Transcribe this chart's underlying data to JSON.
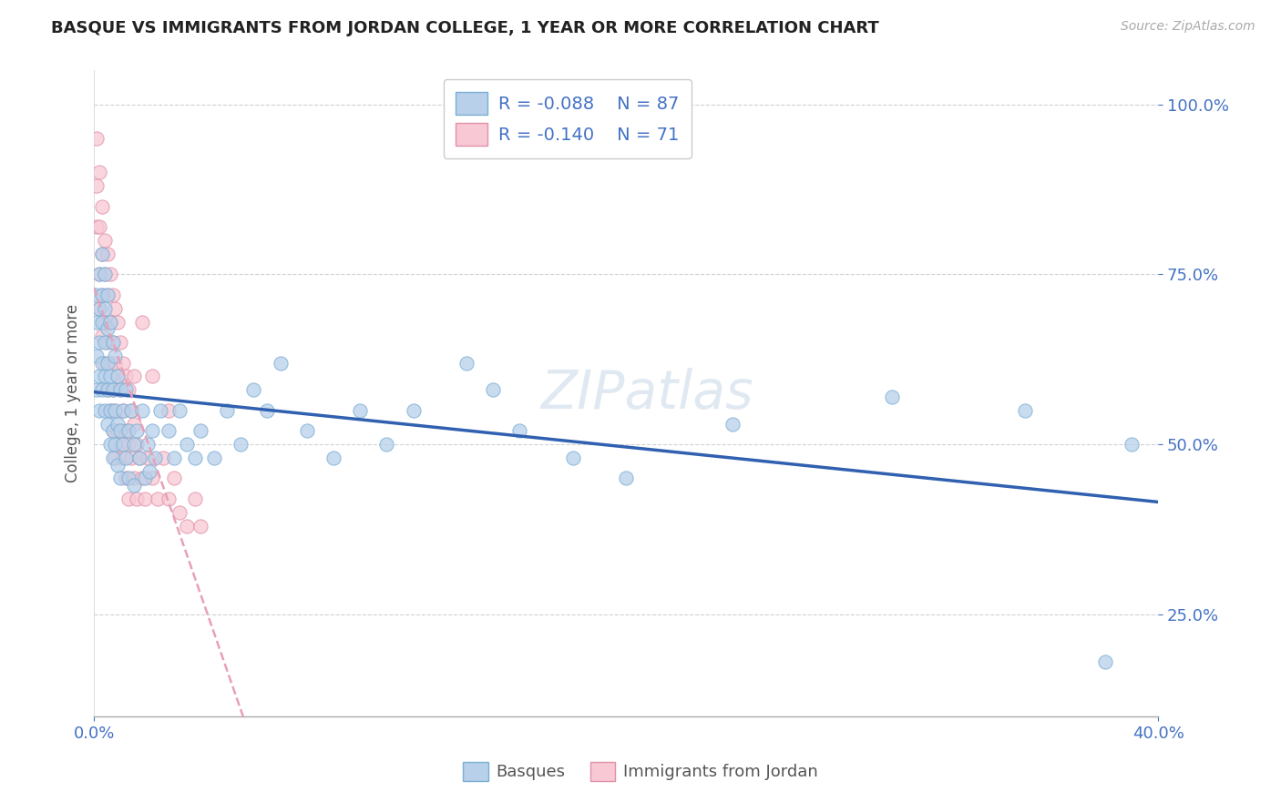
{
  "title": "BASQUE VS IMMIGRANTS FROM JORDAN COLLEGE, 1 YEAR OR MORE CORRELATION CHART",
  "source": "Source: ZipAtlas.com",
  "ylabel": "College, 1 year or more",
  "y_ticks": [
    0.25,
    0.5,
    0.75,
    1.0
  ],
  "xmin": 0.0,
  "xmax": 0.4,
  "ymin": 0.1,
  "ymax": 1.05,
  "series1_label": "Basques",
  "series1_R": -0.088,
  "series1_N": 87,
  "series1_color": "#b8d0ea",
  "series1_edge_color": "#7aaed4",
  "series1_line_color": "#3060b0",
  "series2_label": "Immigrants from Jordan",
  "series2_R": -0.14,
  "series2_N": 71,
  "series2_color": "#f8c8d4",
  "series2_edge_color": "#e090a8",
  "series2_line_color": "#e8a0b8",
  "watermark": "ZIPatlas",
  "background_color": "#ffffff",
  "grid_color": "#cccccc",
  "title_color": "#222222",
  "axis_label_color": "#4472c4",
  "blue_scatter": [
    [
      0.001,
      0.63
    ],
    [
      0.001,
      0.58
    ],
    [
      0.001,
      0.72
    ],
    [
      0.001,
      0.68
    ],
    [
      0.002,
      0.75
    ],
    [
      0.002,
      0.65
    ],
    [
      0.002,
      0.7
    ],
    [
      0.002,
      0.6
    ],
    [
      0.002,
      0.55
    ],
    [
      0.003,
      0.78
    ],
    [
      0.003,
      0.68
    ],
    [
      0.003,
      0.72
    ],
    [
      0.003,
      0.62
    ],
    [
      0.003,
      0.58
    ],
    [
      0.004,
      0.75
    ],
    [
      0.004,
      0.65
    ],
    [
      0.004,
      0.7
    ],
    [
      0.004,
      0.55
    ],
    [
      0.004,
      0.6
    ],
    [
      0.005,
      0.72
    ],
    [
      0.005,
      0.62
    ],
    [
      0.005,
      0.67
    ],
    [
      0.005,
      0.58
    ],
    [
      0.005,
      0.53
    ],
    [
      0.006,
      0.68
    ],
    [
      0.006,
      0.6
    ],
    [
      0.006,
      0.55
    ],
    [
      0.006,
      0.5
    ],
    [
      0.007,
      0.65
    ],
    [
      0.007,
      0.58
    ],
    [
      0.007,
      0.52
    ],
    [
      0.007,
      0.48
    ],
    [
      0.008,
      0.63
    ],
    [
      0.008,
      0.55
    ],
    [
      0.008,
      0.5
    ],
    [
      0.009,
      0.6
    ],
    [
      0.009,
      0.53
    ],
    [
      0.009,
      0.47
    ],
    [
      0.01,
      0.58
    ],
    [
      0.01,
      0.52
    ],
    [
      0.01,
      0.45
    ],
    [
      0.011,
      0.55
    ],
    [
      0.011,
      0.5
    ],
    [
      0.012,
      0.58
    ],
    [
      0.012,
      0.48
    ],
    [
      0.013,
      0.52
    ],
    [
      0.013,
      0.45
    ],
    [
      0.014,
      0.55
    ],
    [
      0.015,
      0.5
    ],
    [
      0.015,
      0.44
    ],
    [
      0.016,
      0.52
    ],
    [
      0.017,
      0.48
    ],
    [
      0.018,
      0.55
    ],
    [
      0.019,
      0.45
    ],
    [
      0.02,
      0.5
    ],
    [
      0.021,
      0.46
    ],
    [
      0.022,
      0.52
    ],
    [
      0.023,
      0.48
    ],
    [
      0.025,
      0.55
    ],
    [
      0.028,
      0.52
    ],
    [
      0.03,
      0.48
    ],
    [
      0.032,
      0.55
    ],
    [
      0.035,
      0.5
    ],
    [
      0.038,
      0.48
    ],
    [
      0.04,
      0.52
    ],
    [
      0.045,
      0.48
    ],
    [
      0.05,
      0.55
    ],
    [
      0.055,
      0.5
    ],
    [
      0.06,
      0.58
    ],
    [
      0.065,
      0.55
    ],
    [
      0.07,
      0.62
    ],
    [
      0.08,
      0.52
    ],
    [
      0.09,
      0.48
    ],
    [
      0.1,
      0.55
    ],
    [
      0.11,
      0.5
    ],
    [
      0.12,
      0.55
    ],
    [
      0.14,
      0.62
    ],
    [
      0.15,
      0.58
    ],
    [
      0.16,
      0.52
    ],
    [
      0.18,
      0.48
    ],
    [
      0.2,
      0.45
    ],
    [
      0.24,
      0.53
    ],
    [
      0.3,
      0.57
    ],
    [
      0.38,
      0.18
    ],
    [
      0.35,
      0.55
    ],
    [
      0.39,
      0.5
    ]
  ],
  "pink_scatter": [
    [
      0.001,
      0.95
    ],
    [
      0.001,
      0.88
    ],
    [
      0.001,
      0.82
    ],
    [
      0.002,
      0.9
    ],
    [
      0.002,
      0.82
    ],
    [
      0.002,
      0.75
    ],
    [
      0.002,
      0.7
    ],
    [
      0.003,
      0.85
    ],
    [
      0.003,
      0.78
    ],
    [
      0.003,
      0.72
    ],
    [
      0.003,
      0.66
    ],
    [
      0.004,
      0.8
    ],
    [
      0.004,
      0.75
    ],
    [
      0.004,
      0.68
    ],
    [
      0.004,
      0.62
    ],
    [
      0.005,
      0.78
    ],
    [
      0.005,
      0.72
    ],
    [
      0.005,
      0.65
    ],
    [
      0.005,
      0.58
    ],
    [
      0.006,
      0.75
    ],
    [
      0.006,
      0.68
    ],
    [
      0.006,
      0.62
    ],
    [
      0.006,
      0.55
    ],
    [
      0.007,
      0.72
    ],
    [
      0.007,
      0.65
    ],
    [
      0.007,
      0.58
    ],
    [
      0.007,
      0.52
    ],
    [
      0.008,
      0.7
    ],
    [
      0.008,
      0.62
    ],
    [
      0.008,
      0.55
    ],
    [
      0.008,
      0.48
    ],
    [
      0.009,
      0.68
    ],
    [
      0.009,
      0.6
    ],
    [
      0.009,
      0.52
    ],
    [
      0.01,
      0.65
    ],
    [
      0.01,
      0.58
    ],
    [
      0.01,
      0.5
    ],
    [
      0.011,
      0.62
    ],
    [
      0.011,
      0.55
    ],
    [
      0.011,
      0.48
    ],
    [
      0.012,
      0.6
    ],
    [
      0.012,
      0.52
    ],
    [
      0.012,
      0.45
    ],
    [
      0.013,
      0.58
    ],
    [
      0.013,
      0.5
    ],
    [
      0.013,
      0.42
    ],
    [
      0.014,
      0.55
    ],
    [
      0.014,
      0.48
    ],
    [
      0.015,
      0.53
    ],
    [
      0.015,
      0.45
    ],
    [
      0.016,
      0.5
    ],
    [
      0.016,
      0.42
    ],
    [
      0.017,
      0.48
    ],
    [
      0.018,
      0.45
    ],
    [
      0.019,
      0.42
    ],
    [
      0.02,
      0.48
    ],
    [
      0.022,
      0.45
    ],
    [
      0.024,
      0.42
    ],
    [
      0.026,
      0.48
    ],
    [
      0.028,
      0.42
    ],
    [
      0.03,
      0.45
    ],
    [
      0.032,
      0.4
    ],
    [
      0.035,
      0.38
    ],
    [
      0.038,
      0.42
    ],
    [
      0.04,
      0.38
    ],
    [
      0.022,
      0.6
    ],
    [
      0.018,
      0.68
    ],
    [
      0.015,
      0.6
    ],
    [
      0.028,
      0.55
    ]
  ]
}
